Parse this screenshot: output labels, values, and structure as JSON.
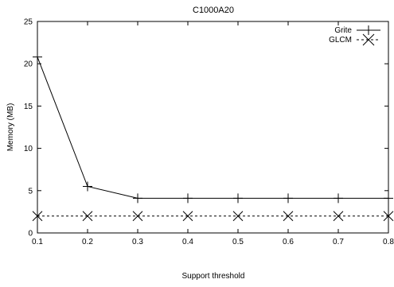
{
  "chart_data": {
    "type": "line",
    "title": "C1000A20",
    "xlabel": "Support threshold",
    "ylabel": "Memory (MB)",
    "x": [
      0.1,
      0.2,
      0.3,
      0.4,
      0.5,
      0.6,
      0.7,
      0.8
    ],
    "xlim": [
      0.1,
      0.8
    ],
    "ylim": [
      0,
      25
    ],
    "xticks": [
      "0.1",
      "0.2",
      "0.3",
      "0.4",
      "0.5",
      "0.6",
      "0.7",
      "0.8"
    ],
    "yticks": [
      "0",
      "5",
      "10",
      "15",
      "20",
      "25"
    ],
    "grid": false,
    "legend_position": "top-right",
    "series": [
      {
        "name": "Grite",
        "marker": "plus",
        "line_style": "solid",
        "color": "#000000",
        "values": [
          20.8,
          5.5,
          4.1,
          4.1,
          4.1,
          4.1,
          4.1,
          4.1
        ]
      },
      {
        "name": "GLCM",
        "marker": "cross",
        "line_style": "dashed",
        "color": "#000000",
        "values": [
          2.0,
          2.0,
          2.0,
          2.0,
          2.0,
          2.0,
          2.0,
          2.0
        ]
      }
    ]
  }
}
